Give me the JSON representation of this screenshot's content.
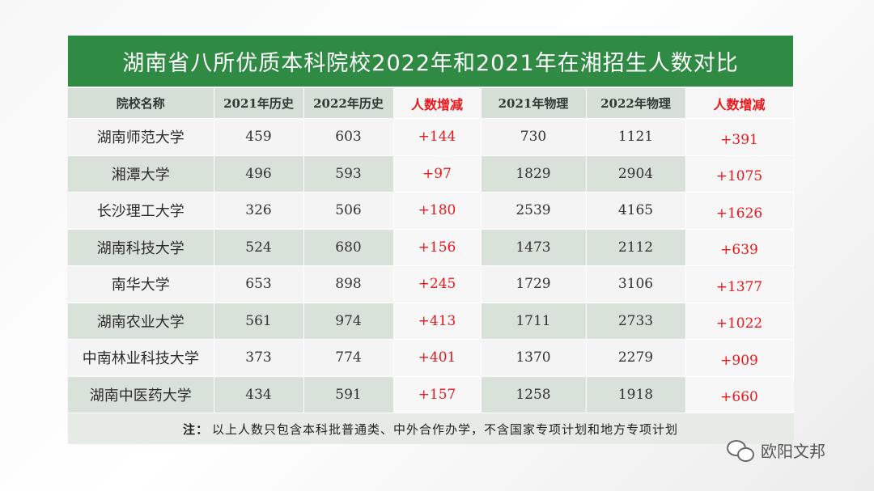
{
  "title": "湖南省八所优质本科院校2022年和2021年在湘招生人数对比",
  "columns": [
    "院校名称",
    "2021年历史",
    "2022年历史",
    "人数增减",
    "2021年物理",
    "2022年物理",
    "人数增减"
  ],
  "rows": [
    {
      "name": "湖南师范大学",
      "h2021": "459",
      "h2022": "603",
      "hdiff": "+144",
      "p2021": "730",
      "p2022": "1121",
      "pdiff": "+391"
    },
    {
      "name": "湘潭大学",
      "h2021": "496",
      "h2022": "593",
      "hdiff": "+97",
      "p2021": "1829",
      "p2022": "2904",
      "pdiff": "+1075"
    },
    {
      "name": "长沙理工大学",
      "h2021": "326",
      "h2022": "506",
      "hdiff": "+180",
      "p2021": "2539",
      "p2022": "4165",
      "pdiff": "+1626"
    },
    {
      "name": "湖南科技大学",
      "h2021": "524",
      "h2022": "680",
      "hdiff": "+156",
      "p2021": "1473",
      "p2022": "2112",
      "pdiff": "+639"
    },
    {
      "name": "南华大学",
      "h2021": "653",
      "h2022": "898",
      "hdiff": "+245",
      "p2021": "1729",
      "p2022": "3106",
      "pdiff": "+1377"
    },
    {
      "name": "湖南农业大学",
      "h2021": "561",
      "h2022": "974",
      "hdiff": "+413",
      "p2021": "1711",
      "p2022": "2733",
      "pdiff": "+1022"
    },
    {
      "name": "中南林业科技大学",
      "h2021": "373",
      "h2022": "774",
      "hdiff": "+401",
      "p2021": "1370",
      "p2022": "2279",
      "pdiff": "+909"
    },
    {
      "name": "湖南中医药大学",
      "h2021": "434",
      "h2022": "591",
      "hdiff": "+157",
      "p2021": "1258",
      "p2022": "1918",
      "pdiff": "+660"
    }
  ],
  "note": {
    "label": "注：",
    "text": "以上人数只包含本科批普通类、中外合作办学，不含国家专项计划和地方专项计划"
  },
  "watermark": {
    "icon": "wechat-icon",
    "text": "欧阳文邦"
  },
  "colors": {
    "title_bg": "#2f8a43",
    "header_bg": "#d6dfd6",
    "diff_text": "#e8181c"
  }
}
